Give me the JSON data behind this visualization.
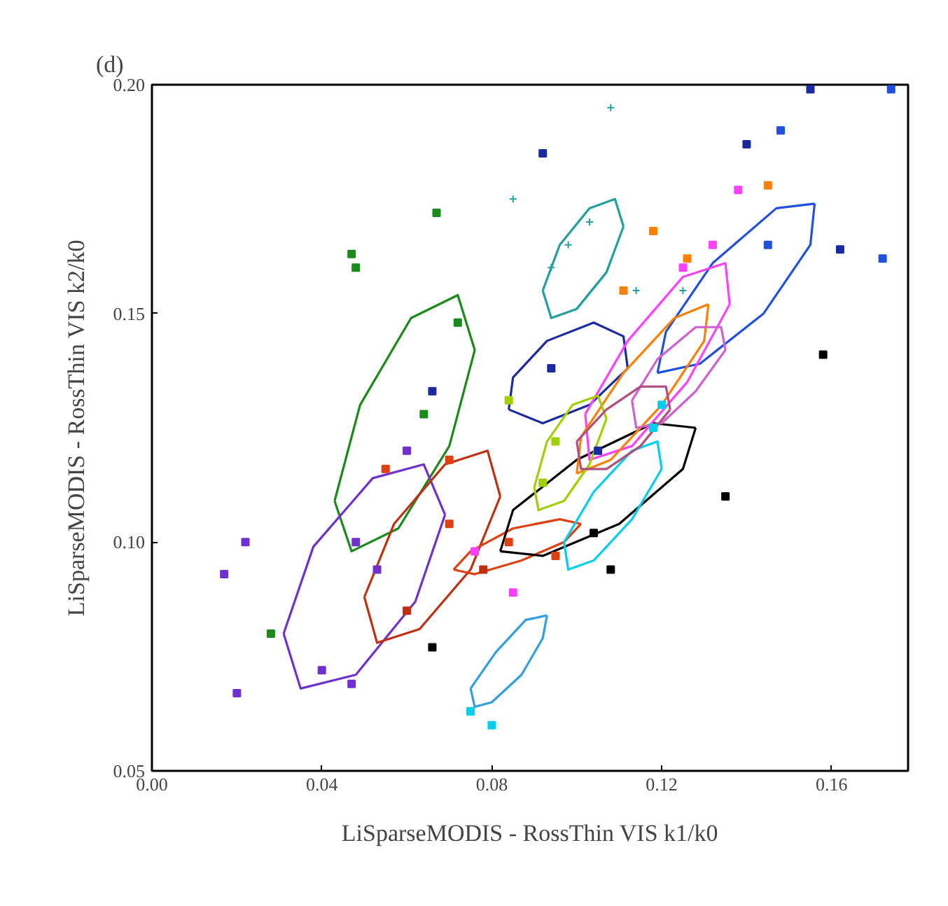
{
  "chart_data": {
    "type": "scatter",
    "title": "(d)",
    "xlabel": "LiSparseMODIS - RossThin VIS k1/k0",
    "ylabel": "LiSparseMODIS - RossThin VIS k2/k0",
    "xlim": [
      0,
      0.178
    ],
    "ylim": [
      0.05,
      0.2
    ],
    "xticks": [
      {
        "value": 0,
        "label": "0.00"
      },
      {
        "value": 0.04,
        "label": "0.04"
      },
      {
        "value": 0.08,
        "label": "0.08"
      },
      {
        "value": 0.12,
        "label": "0.12"
      },
      {
        "value": 0.16,
        "label": "0.16"
      }
    ],
    "yticks": [
      {
        "value": 0.05,
        "label": "0.05"
      },
      {
        "value": 0.1,
        "label": "0.10"
      },
      {
        "value": 0.15,
        "label": "0.15"
      },
      {
        "value": 0.2,
        "label": "0.20"
      }
    ],
    "grid": false,
    "series": [
      {
        "type": "line",
        "color": "#1a8a1a",
        "x": [
          0.043,
          0.047,
          0.058,
          0.07,
          0.076
        ],
        "values": [
          0.109,
          0.098,
          0.103,
          0.121,
          0.142
        ]
      },
      {
        "type": "line",
        "color": "#1a8a1a",
        "x": [
          0.043,
          0.049,
          0.061,
          0.072,
          0.076
        ],
        "values": [
          0.109,
          0.13,
          0.149,
          0.154,
          0.142
        ]
      },
      {
        "type": "line",
        "color": "#7030d0",
        "x": [
          0.031,
          0.035,
          0.048,
          0.062,
          0.069
        ],
        "values": [
          0.08,
          0.068,
          0.071,
          0.087,
          0.106
        ]
      },
      {
        "type": "line",
        "color": "#7030d0",
        "x": [
          0.031,
          0.038,
          0.052,
          0.064,
          0.069
        ],
        "values": [
          0.08,
          0.099,
          0.114,
          0.117,
          0.106
        ]
      },
      {
        "type": "line",
        "color": "#c03010",
        "x": [
          0.05,
          0.053,
          0.063,
          0.075,
          0.082
        ],
        "values": [
          0.088,
          0.078,
          0.081,
          0.094,
          0.11
        ]
      },
      {
        "type": "line",
        "color": "#c03010",
        "x": [
          0.05,
          0.057,
          0.069,
          0.079,
          0.082
        ],
        "values": [
          0.088,
          0.104,
          0.117,
          0.12,
          0.11
        ]
      },
      {
        "type": "line",
        "color": "#e04010",
        "x": [
          0.071,
          0.076,
          0.087,
          0.097,
          0.101
        ],
        "values": [
          0.094,
          0.093,
          0.096,
          0.1,
          0.104
        ]
      },
      {
        "type": "line",
        "color": "#e04010",
        "x": [
          0.071,
          0.075,
          0.085,
          0.096,
          0.101
        ],
        "values": [
          0.094,
          0.098,
          0.103,
          0.105,
          0.104
        ]
      },
      {
        "type": "line",
        "color": "#30a0e0",
        "x": [
          0.075,
          0.076,
          0.08,
          0.087,
          0.092,
          0.093
        ],
        "values": [
          0.068,
          0.064,
          0.065,
          0.071,
          0.079,
          0.084
        ]
      },
      {
        "type": "line",
        "color": "#30a0e0",
        "x": [
          0.075,
          0.081,
          0.088,
          0.093
        ],
        "values": [
          0.068,
          0.076,
          0.083,
          0.084
        ]
      },
      {
        "type": "line",
        "color": "#000000",
        "x": [
          0.082,
          0.092,
          0.11,
          0.125,
          0.128
        ],
        "values": [
          0.098,
          0.097,
          0.104,
          0.116,
          0.125
        ]
      },
      {
        "type": "line",
        "color": "#000000",
        "x": [
          0.082,
          0.085,
          0.1,
          0.118,
          0.128
        ],
        "values": [
          0.098,
          0.107,
          0.118,
          0.126,
          0.125
        ]
      },
      {
        "type": "line",
        "color": "#20a0a0",
        "x": [
          0.092,
          0.094,
          0.1,
          0.107,
          0.111
        ],
        "values": [
          0.155,
          0.149,
          0.151,
          0.159,
          0.169
        ]
      },
      {
        "type": "line",
        "color": "#20a0a0",
        "x": [
          0.092,
          0.096,
          0.103,
          0.109,
          0.111
        ],
        "values": [
          0.155,
          0.165,
          0.173,
          0.175,
          0.169
        ]
      },
      {
        "type": "line",
        "color": "#1a2aa0",
        "x": [
          0.084,
          0.092,
          0.103,
          0.112
        ],
        "values": [
          0.129,
          0.126,
          0.13,
          0.138
        ]
      },
      {
        "type": "line",
        "color": "#1a2aa0",
        "x": [
          0.084,
          0.085,
          0.093,
          0.104,
          0.111,
          0.112
        ],
        "values": [
          0.129,
          0.136,
          0.144,
          0.148,
          0.145,
          0.138
        ]
      },
      {
        "type": "line",
        "color": "#2050e0",
        "x": [
          0.119,
          0.129,
          0.144,
          0.155,
          0.156
        ],
        "values": [
          0.137,
          0.139,
          0.15,
          0.165,
          0.174
        ]
      },
      {
        "type": "line",
        "color": "#2050e0",
        "x": [
          0.119,
          0.121,
          0.132,
          0.147,
          0.156
        ],
        "values": [
          0.137,
          0.146,
          0.161,
          0.173,
          0.174
        ]
      },
      {
        "type": "line",
        "color": "#ff40ff",
        "x": [
          0.102,
          0.103,
          0.113,
          0.126,
          0.136
        ],
        "values": [
          0.128,
          0.118,
          0.121,
          0.135,
          0.152
        ]
      },
      {
        "type": "line",
        "color": "#ff40ff",
        "x": [
          0.102,
          0.112,
          0.125,
          0.135,
          0.136
        ],
        "values": [
          0.128,
          0.144,
          0.158,
          0.161,
          0.152
        ]
      },
      {
        "type": "line",
        "color": "#ff8000",
        "x": [
          0.1,
          0.108,
          0.12,
          0.13,
          0.131
        ],
        "values": [
          0.115,
          0.118,
          0.13,
          0.144,
          0.152
        ]
      },
      {
        "type": "line",
        "color": "#ff8000",
        "x": [
          0.1,
          0.101,
          0.111,
          0.123,
          0.131
        ],
        "values": [
          0.115,
          0.123,
          0.137,
          0.149,
          0.152
        ]
      },
      {
        "type": "line",
        "color": "#d060d0",
        "x": [
          0.113,
          0.114,
          0.12,
          0.128,
          0.135
        ],
        "values": [
          0.131,
          0.125,
          0.126,
          0.133,
          0.142
        ]
      },
      {
        "type": "line",
        "color": "#d060d0",
        "x": [
          0.113,
          0.119,
          0.128,
          0.134,
          0.135
        ],
        "values": [
          0.131,
          0.14,
          0.147,
          0.147,
          0.142
        ]
      },
      {
        "type": "line",
        "color": "#00d0f0",
        "x": [
          0.097,
          0.098,
          0.104,
          0.113,
          0.12
        ],
        "values": [
          0.1,
          0.094,
          0.096,
          0.105,
          0.116
        ]
      },
      {
        "type": "line",
        "color": "#00d0f0",
        "x": [
          0.097,
          0.104,
          0.113,
          0.119,
          0.12
        ],
        "values": [
          0.1,
          0.111,
          0.12,
          0.122,
          0.116
        ]
      },
      {
        "type": "line",
        "color": "#a0d000",
        "x": [
          0.09,
          0.091,
          0.097,
          0.103,
          0.107
        ],
        "values": [
          0.112,
          0.107,
          0.109,
          0.117,
          0.127
        ]
      },
      {
        "type": "line",
        "color": "#a0d000",
        "x": [
          0.09,
          0.093,
          0.099,
          0.105,
          0.107
        ],
        "values": [
          0.112,
          0.122,
          0.13,
          0.132,
          0.127
        ]
      },
      {
        "type": "line",
        "color": "#b05080",
        "x": [
          0.1,
          0.101,
          0.107,
          0.115,
          0.122
        ],
        "values": [
          0.122,
          0.116,
          0.116,
          0.121,
          0.129
        ]
      },
      {
        "type": "line",
        "color": "#b05080",
        "x": [
          0.1,
          0.107,
          0.115,
          0.121,
          0.122
        ],
        "values": [
          0.122,
          0.129,
          0.134,
          0.134,
          0.129
        ]
      },
      {
        "marker": "square",
        "color": "#1a2aa0",
        "x": [
          0.066,
          0.092,
          0.094,
          0.155,
          0.14,
          0.162,
          0.105
        ],
        "values": [
          0.133,
          0.185,
          0.138,
          0.199,
          0.187,
          0.164,
          0.12
        ]
      },
      {
        "marker": "square",
        "color": "#2050e0",
        "x": [
          0.148,
          0.172,
          0.174,
          0.145
        ],
        "values": [
          0.19,
          0.162,
          0.199,
          0.165
        ]
      },
      {
        "marker": "cross",
        "color": "#20a0a0",
        "x": [
          0.108,
          0.098,
          0.094,
          0.103,
          0.114,
          0.125,
          0.085
        ],
        "values": [
          0.195,
          0.165,
          0.16,
          0.17,
          0.155,
          0.155,
          0.175
        ]
      },
      {
        "marker": "square",
        "color": "#7030d0",
        "x": [
          0.017,
          0.02,
          0.022,
          0.04,
          0.047,
          0.053,
          0.06,
          0.048
        ],
        "values": [
          0.093,
          0.067,
          0.1,
          0.072,
          0.069,
          0.094,
          0.12,
          0.1
        ]
      },
      {
        "marker": "square",
        "color": "#1a8a1a",
        "x": [
          0.047,
          0.072,
          0.064,
          0.048,
          0.067,
          0.028
        ],
        "values": [
          0.163,
          0.148,
          0.128,
          0.16,
          0.172,
          0.08
        ]
      },
      {
        "marker": "square",
        "color": "#000000",
        "x": [
          0.066,
          0.158,
          0.108,
          0.104,
          0.135
        ],
        "values": [
          0.077,
          0.141,
          0.094,
          0.102,
          0.11
        ]
      },
      {
        "marker": "square",
        "color": "#e04010",
        "x": [
          0.07,
          0.084,
          0.095,
          0.07,
          0.055
        ],
        "values": [
          0.118,
          0.1,
          0.097,
          0.104,
          0.116
        ]
      },
      {
        "marker": "square",
        "color": "#ff40ff",
        "x": [
          0.138,
          0.125,
          0.132,
          0.085,
          0.076
        ],
        "values": [
          0.177,
          0.16,
          0.165,
          0.089,
          0.098
        ]
      },
      {
        "marker": "square",
        "color": "#ff8000",
        "x": [
          0.145,
          0.126,
          0.111,
          0.118
        ],
        "values": [
          0.178,
          0.162,
          0.155,
          0.168
        ]
      },
      {
        "marker": "square",
        "color": "#00d0f0",
        "x": [
          0.118,
          0.12,
          0.075,
          0.08
        ],
        "values": [
          0.125,
          0.13,
          0.063,
          0.06
        ]
      },
      {
        "marker": "square",
        "color": "#a0d000",
        "x": [
          0.092,
          0.095,
          0.084
        ],
        "values": [
          0.113,
          0.122,
          0.131
        ]
      },
      {
        "marker": "square",
        "color": "#c03010",
        "x": [
          0.078,
          0.06
        ],
        "values": [
          0.094,
          0.085
        ]
      }
    ]
  }
}
